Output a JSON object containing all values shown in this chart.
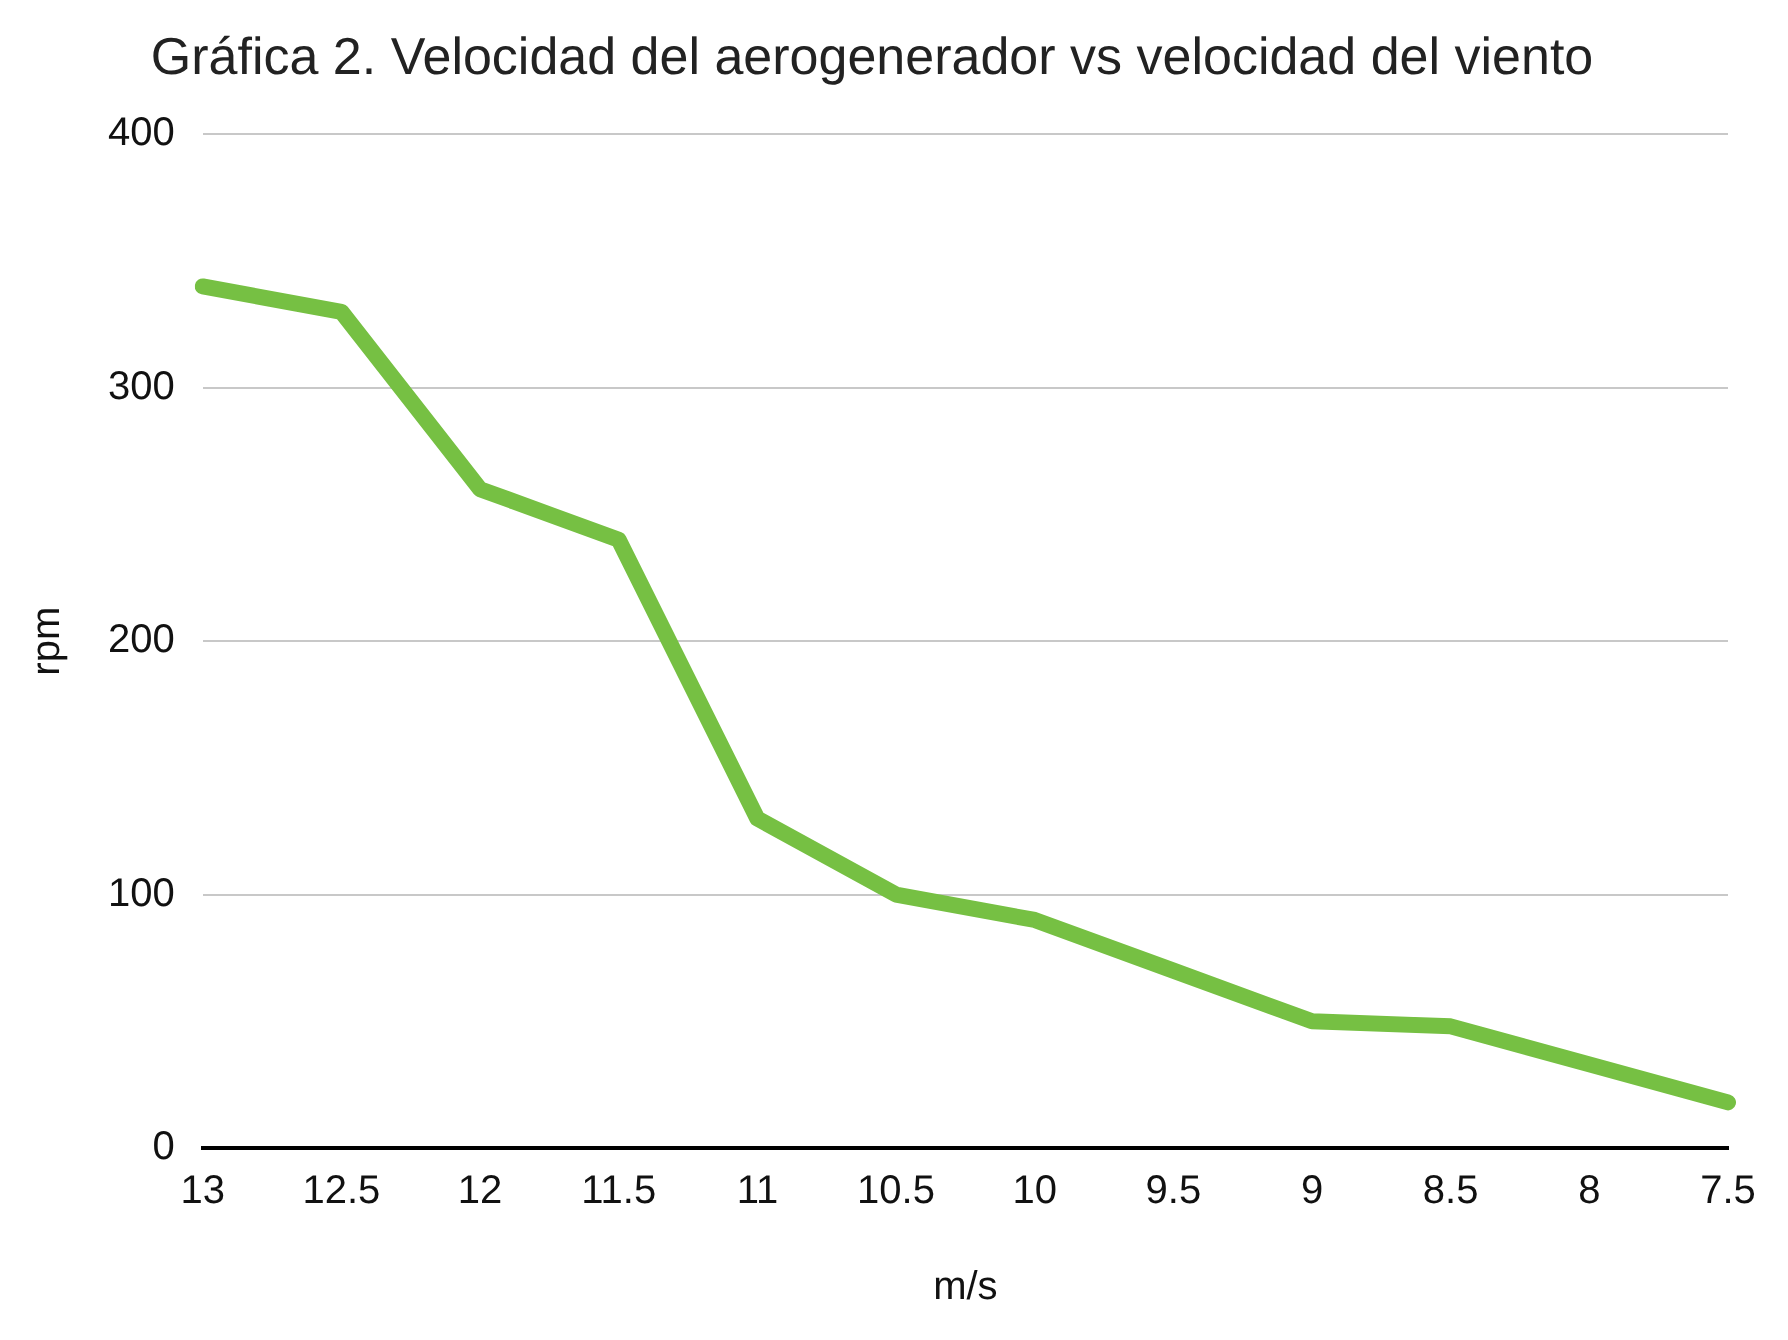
{
  "chart_data": {
    "type": "line",
    "title": "Gráfica 2. Velocidad del aerogenerador vs velocidad del viento",
    "xlabel": "m/s",
    "ylabel": "rpm",
    "categories": [
      "13",
      "12.5",
      "12",
      "11.5",
      "11",
      "10.5",
      "10",
      "9.5",
      "9",
      "8.5",
      "8",
      "7.5"
    ],
    "series": [
      {
        "color": "#76c043",
        "values": [
          340,
          330,
          260,
          240,
          130,
          100,
          90,
          70,
          50,
          48,
          33,
          18
        ]
      }
    ],
    "ylim": [
      0,
      400
    ],
    "yticks": [
      0,
      100,
      200,
      300,
      400
    ],
    "grid": "y",
    "legend": false,
    "marker": "none",
    "line_style": "solid"
  }
}
